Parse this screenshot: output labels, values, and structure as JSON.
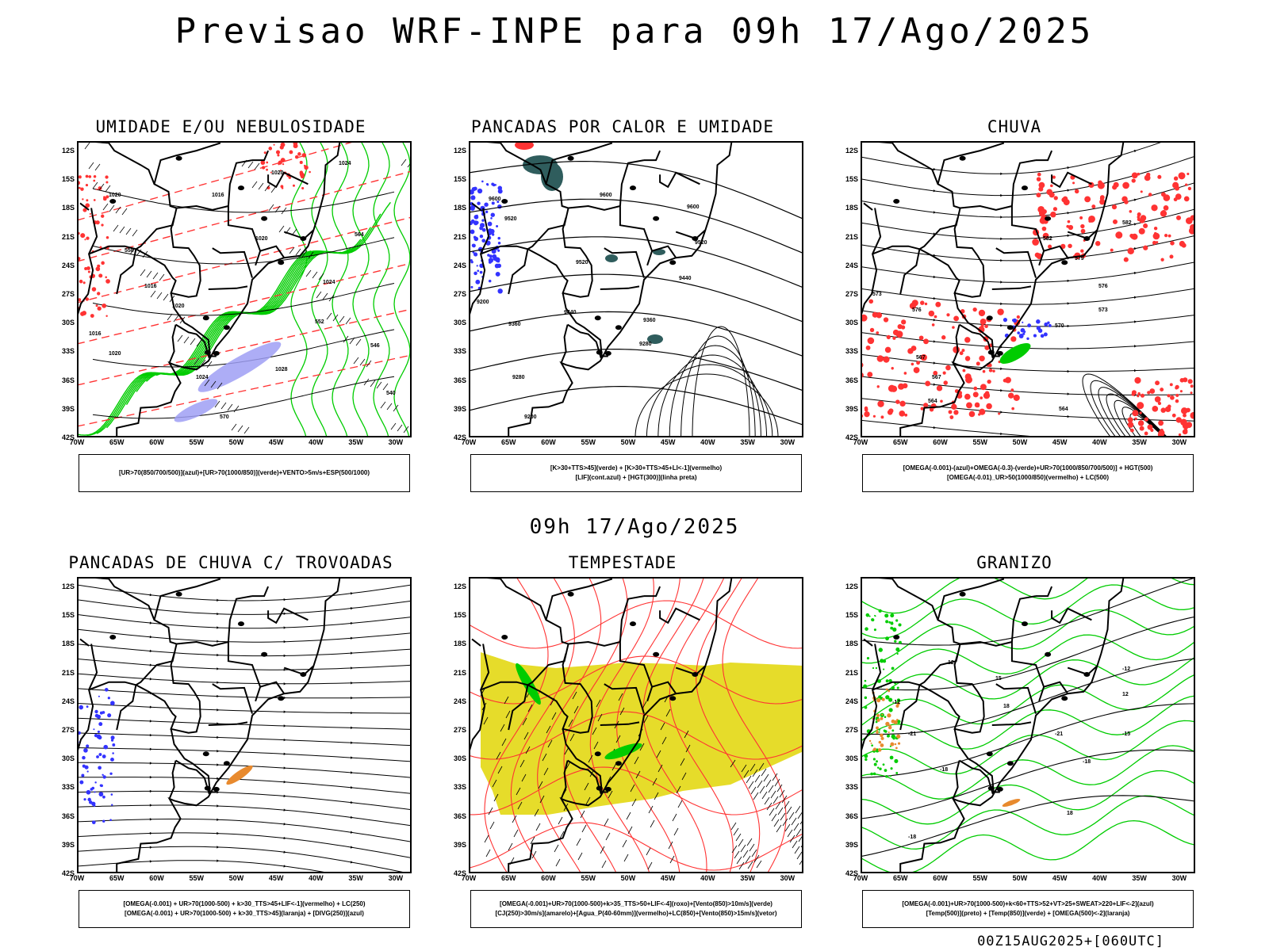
{
  "header": {
    "title": "Previsao WRF-INPE  para 09h 17/Ago/2025",
    "mid_title": "09h 17/Ago/2025",
    "footer": "00Z15AUG2025+[060UTC]"
  },
  "axes": {
    "lat_labels": [
      "12S",
      "15S",
      "18S",
      "21S",
      "24S",
      "27S",
      "30S",
      "33S",
      "36S",
      "39S",
      "42S"
    ],
    "lon_labels": [
      "70W",
      "65W",
      "60W",
      "55W",
      "50W",
      "45W",
      "40W",
      "35W",
      "30W"
    ]
  },
  "panels": [
    {
      "title": "UMIDADE E/OU NEBULOSIDADE",
      "legend": [
        "[UR>70(850/700/500)](azul)+[UR>70(1000/850)](verde)+VENTO>5m/s+ESP(500/1000)"
      ],
      "contour_labels": [
        "1020",
        "1016",
        "1020",
        "1024",
        "1020",
        "1016",
        "1020",
        "1024",
        "1028",
        "1016",
        "1020",
        "1024",
        "564",
        "570",
        "558",
        "552",
        "546",
        "540"
      ]
    },
    {
      "title": "PANCADAS POR CALOR E UMIDADE",
      "legend": [
        "[K>30+TTS>45](verde) + [K>30+TTS>45+LI<-1](vermelho)",
        "[LIF](cont.azul) + [HGT(300)](linha preta)"
      ],
      "contour_labels": [
        "9600",
        "9600",
        "9600",
        "9520",
        "9520",
        "9520",
        "9440",
        "9440",
        "9360",
        "9360",
        "9280",
        "9280",
        "9200",
        "9200"
      ]
    },
    {
      "title": "CHUVA",
      "legend": [
        "[OMEGA(-0.001)-(azul)+OMEGA(-0.3)-(verde)+UR>70(1000/850/700/500)] + HGT(500)",
        "[OMEGA(-0.01)_UR>50(1000/850)(vermelho) + LC(500)"
      ],
      "contour_labels": [
        "582",
        "582",
        "582",
        "579",
        "576",
        "576",
        "573",
        "573",
        "570",
        "567",
        "567",
        "564",
        "564"
      ]
    },
    {
      "title": "PANCADAS DE CHUVA C/ TROVOADAS",
      "legend": [
        "[OMEGA(-0.001) + UR>70(1000-500) + k>30_TTS>45+LIF<-1](vermelho) + LC(250)",
        "[OMEGA(-0.001) + UR>70(1000-500) + k>30_TTS>45](laranja) + [DIVG(250)](azul)"
      ],
      "contour_labels": []
    },
    {
      "title": "TEMPESTADE",
      "legend": [
        "[OMEGA(-0.001)+UR>70(1000-500)+k>35_TTS>50+LIF<-4](roxo)+[Vento(850)>10m/s](verde)",
        "[CJ(250)>30m/s](amarelo)+[Agua_P(40-60mm)](vermelho)+LC(850)+[Vento(850)>15m/s](vetor)"
      ],
      "contour_labels": []
    },
    {
      "title": "GRANIZO",
      "legend": [
        "[OMEGA(-0.001)+UR>70(1000-500)+k<60+TTS>52+VT>25+SWEAT>220+LIF<-2](azul)",
        "[Temp(500)](preto) + [Temp(850)](verde) + [OMEGA(500)<-2](laranja)"
      ],
      "contour_labels": [
        "-12",
        "-12",
        "-15",
        "-18",
        "-18",
        "-18",
        "-21",
        "-21",
        "12",
        "12",
        "15",
        "18",
        "18"
      ]
    }
  ],
  "colors": {
    "map_lines": "#000000",
    "green": "#00cc00",
    "red": "#ff3333",
    "blue": "#3333ff",
    "lavender": "#9f9ff5",
    "teal": "#2f5d5d",
    "yellow": "#e6dc2a",
    "orange": "#e88a2e",
    "light_green": "#66ee66"
  }
}
